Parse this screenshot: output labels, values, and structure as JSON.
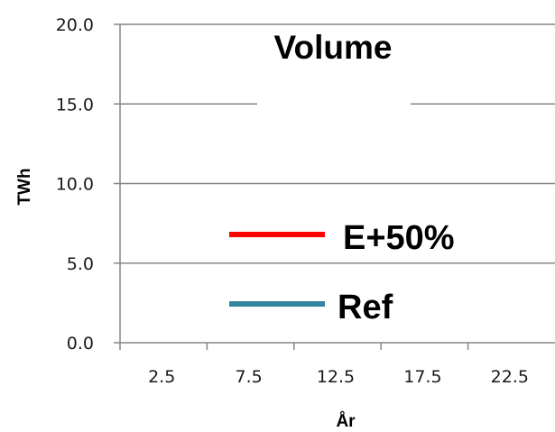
{
  "chart_data": {
    "type": "line",
    "title": "Volume",
    "xlabel": "År",
    "ylabel": "TWh",
    "x_tick_labels": [
      "2.5",
      "7.5",
      "12.5",
      "17.5",
      "22.5"
    ],
    "y_tick_labels": [
      "0.0",
      "5.0",
      "10.0",
      "15.0",
      "20.0"
    ],
    "y_ticks": [
      0,
      5,
      10,
      15,
      20
    ],
    "ylim": [
      0,
      20
    ],
    "grid": "horizontal",
    "legend_placement": "center",
    "series": [
      {
        "name": "E+50%",
        "color": "#ff0000",
        "values": []
      },
      {
        "name": "Ref",
        "color": "#31859c",
        "values": []
      }
    ]
  }
}
